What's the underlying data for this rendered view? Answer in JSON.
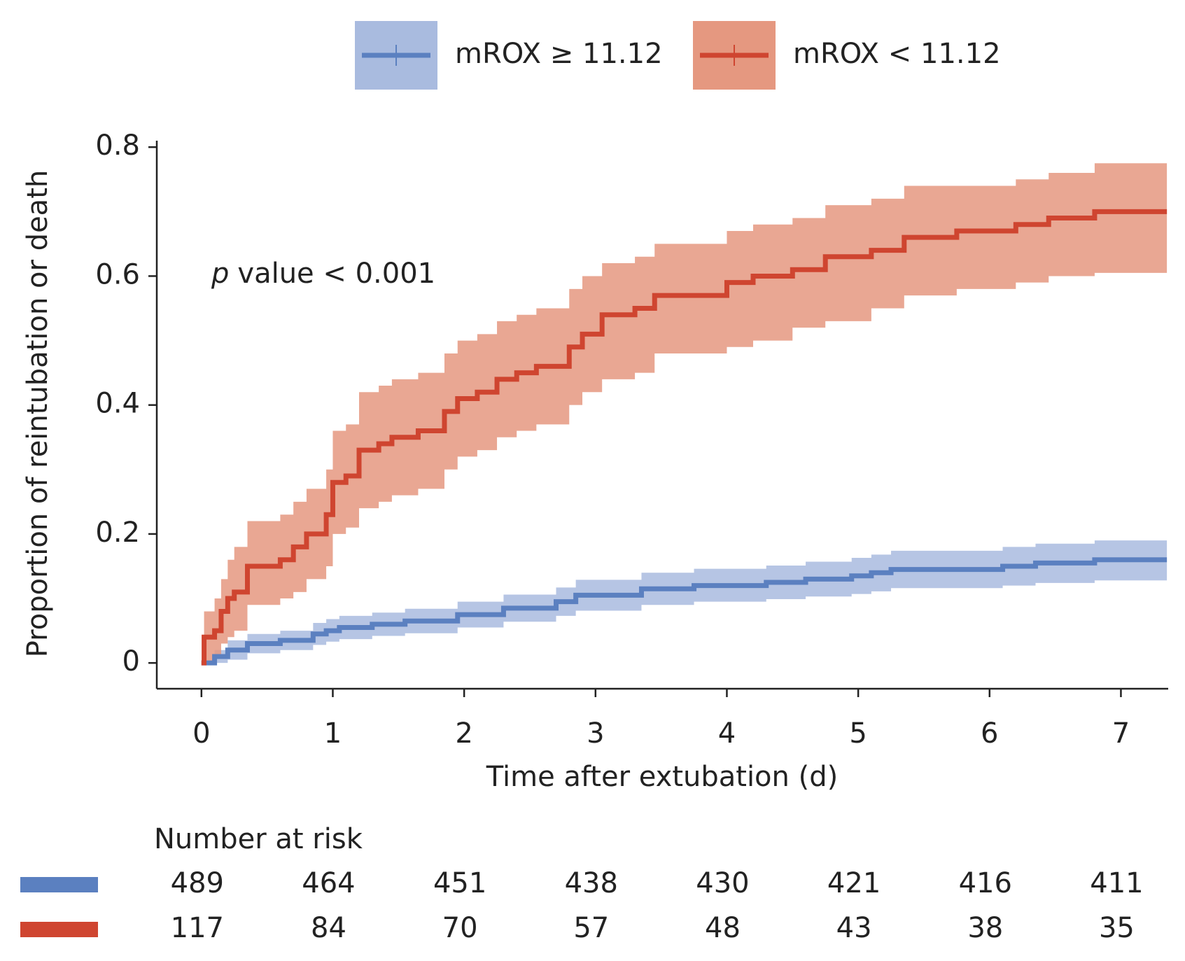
{
  "chart_data": {
    "type": "step",
    "xlabel": "Time after extubation (d)",
    "ylabel": "Proportion of reintubation or death",
    "annotation_prefix": "p",
    "annotation": "value < 0.001",
    "xlim": [
      -0.34,
      7.36
    ],
    "ylim": [
      -0.04,
      0.81
    ],
    "xticks": [
      0,
      1,
      2,
      3,
      4,
      5,
      6,
      7
    ],
    "yticks": [
      0,
      0.2,
      0.4,
      0.6,
      0.8
    ],
    "legend": "top",
    "risk_title": "Number at risk",
    "series": [
      {
        "name": "mROX ≥ 11.12",
        "color": "#5b80c0",
        "band_color": "#a9bbdf",
        "x": [
          0,
          0.1,
          0.2,
          0.35,
          0.6,
          0.85,
          0.95,
          1.05,
          1.3,
          1.55,
          1.95,
          2.3,
          2.7,
          2.85,
          3.35,
          3.75,
          4.3,
          4.6,
          4.95,
          5.1,
          5.25,
          6.1,
          6.35,
          6.8,
          7.35
        ],
        "values": [
          0,
          0.01,
          0.02,
          0.03,
          0.035,
          0.045,
          0.05,
          0.055,
          0.06,
          0.065,
          0.075,
          0.085,
          0.095,
          0.105,
          0.115,
          0.12,
          0.125,
          0.13,
          0.135,
          0.14,
          0.145,
          0.15,
          0.155,
          0.16,
          0.16
        ],
        "lower": [
          0,
          0.0,
          0.005,
          0.015,
          0.02,
          0.028,
          0.033,
          0.037,
          0.042,
          0.046,
          0.055,
          0.064,
          0.073,
          0.081,
          0.09,
          0.095,
          0.099,
          0.103,
          0.107,
          0.111,
          0.116,
          0.12,
          0.124,
          0.128,
          0.128
        ],
        "upper": [
          0,
          0.02,
          0.035,
          0.045,
          0.05,
          0.062,
          0.068,
          0.073,
          0.078,
          0.084,
          0.095,
          0.106,
          0.117,
          0.129,
          0.14,
          0.146,
          0.151,
          0.157,
          0.163,
          0.168,
          0.174,
          0.18,
          0.185,
          0.19,
          0.19
        ],
        "at_risk": [
          489,
          464,
          451,
          438,
          430,
          421,
          416,
          411
        ]
      },
      {
        "name": "mROX < 11.12",
        "color": "#cf4530",
        "band_color": "#e59880",
        "x": [
          0,
          0.02,
          0.1,
          0.15,
          0.2,
          0.25,
          0.35,
          0.6,
          0.7,
          0.8,
          0.95,
          1.0,
          1.1,
          1.2,
          1.35,
          1.45,
          1.65,
          1.85,
          1.95,
          2.1,
          2.25,
          2.4,
          2.55,
          2.8,
          2.9,
          3.05,
          3.3,
          3.45,
          4.0,
          4.2,
          4.5,
          4.75,
          5.1,
          5.35,
          5.75,
          6.2,
          6.45,
          6.8,
          7.35
        ],
        "values": [
          0,
          0.04,
          0.05,
          0.08,
          0.1,
          0.11,
          0.15,
          0.16,
          0.18,
          0.2,
          0.23,
          0.28,
          0.29,
          0.33,
          0.34,
          0.35,
          0.36,
          0.39,
          0.41,
          0.42,
          0.44,
          0.45,
          0.46,
          0.49,
          0.51,
          0.54,
          0.55,
          0.57,
          0.59,
          0.6,
          0.61,
          0.63,
          0.64,
          0.66,
          0.67,
          0.68,
          0.69,
          0.7,
          0.7
        ],
        "lower": [
          0,
          0.0,
          0.01,
          0.03,
          0.04,
          0.05,
          0.09,
          0.1,
          0.11,
          0.13,
          0.15,
          0.2,
          0.21,
          0.24,
          0.25,
          0.26,
          0.27,
          0.3,
          0.32,
          0.33,
          0.35,
          0.36,
          0.37,
          0.4,
          0.42,
          0.44,
          0.45,
          0.48,
          0.49,
          0.5,
          0.52,
          0.53,
          0.55,
          0.57,
          0.58,
          0.59,
          0.6,
          0.605,
          0.605
        ],
        "upper": [
          0,
          0.08,
          0.1,
          0.13,
          0.16,
          0.18,
          0.22,
          0.23,
          0.25,
          0.27,
          0.3,
          0.36,
          0.37,
          0.42,
          0.43,
          0.44,
          0.45,
          0.48,
          0.5,
          0.51,
          0.53,
          0.54,
          0.55,
          0.58,
          0.6,
          0.62,
          0.63,
          0.65,
          0.67,
          0.68,
          0.69,
          0.71,
          0.72,
          0.74,
          0.74,
          0.75,
          0.76,
          0.775,
          0.775
        ],
        "at_risk": [
          117,
          84,
          70,
          57,
          48,
          43,
          38,
          35
        ]
      }
    ]
  }
}
